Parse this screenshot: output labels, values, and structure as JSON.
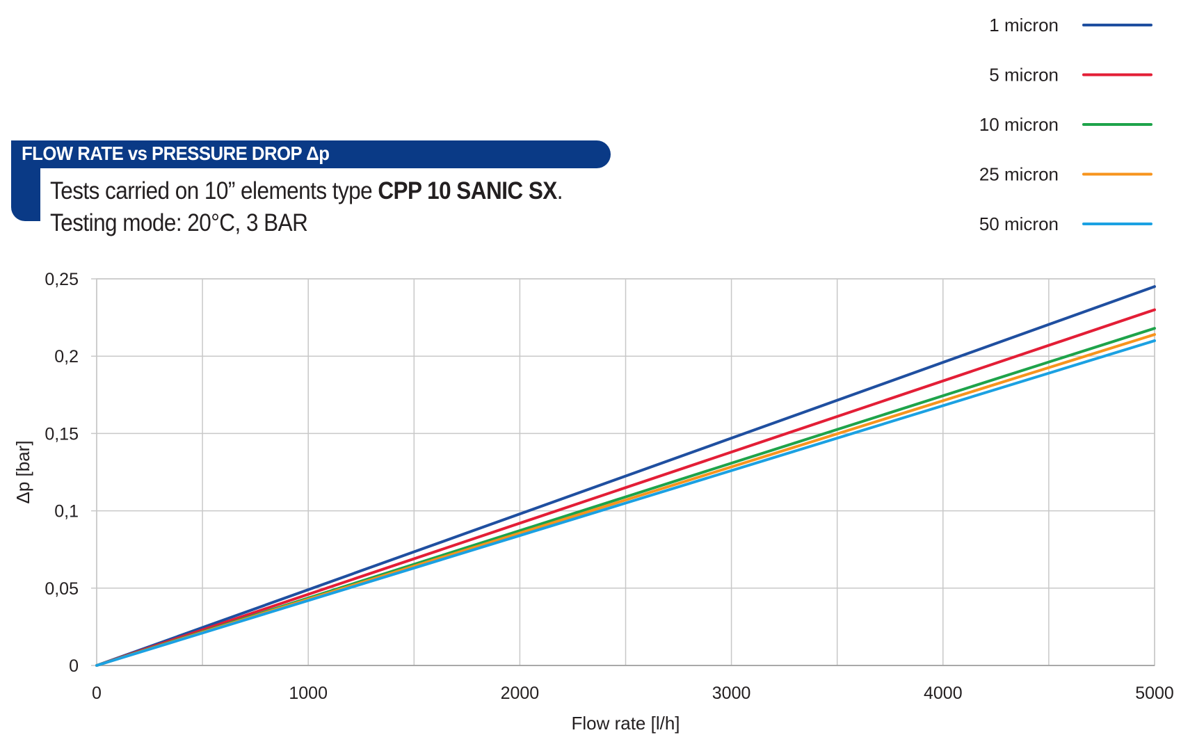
{
  "header": {
    "title": "FLOW RATE vs PRESSURE DROP Δp",
    "line1_prefix": "Tests carried on 10” elements type ",
    "line1_bold": "CPP 10 SANIC SX",
    "line1_suffix": ".",
    "line2": "Testing mode: 20°C, 3 BAR"
  },
  "colors": {
    "header_bg": "#0a3a86",
    "grid": "#c8c8c8"
  },
  "chart_data": {
    "type": "line",
    "title": "FLOW RATE vs PRESSURE DROP Δp",
    "xlabel": "Flow rate [l/h]",
    "ylabel": "Δp [bar]",
    "xlim": [
      0,
      5000
    ],
    "ylim": [
      0,
      0.25
    ],
    "grid": true,
    "legend_placement": "top-right",
    "x_ticks": [
      "0",
      "1000",
      "2000",
      "3000",
      "4000",
      "5000"
    ],
    "y_ticks": [
      "0",
      "0,05",
      "0,1",
      "0,15",
      "0,2",
      "0,25"
    ],
    "x_tick_values": [
      0,
      1000,
      2000,
      3000,
      4000,
      5000
    ],
    "y_tick_values": [
      0,
      0.05,
      0.1,
      0.15,
      0.2,
      0.25
    ],
    "x_minor_grid": [
      500,
      1500,
      2500,
      3500,
      4500
    ],
    "series": [
      {
        "name": "1 micron",
        "color": "#1f4fa0",
        "x": [
          0,
          5000
        ],
        "values": [
          0,
          0.245
        ]
      },
      {
        "name": "5 micron",
        "color": "#e31e36",
        "x": [
          0,
          5000
        ],
        "values": [
          0,
          0.23
        ]
      },
      {
        "name": "10 micron",
        "color": "#1ea34a",
        "x": [
          0,
          5000
        ],
        "values": [
          0,
          0.218
        ]
      },
      {
        "name": "25 micron",
        "color": "#f7941d",
        "x": [
          0,
          5000
        ],
        "values": [
          0,
          0.214
        ]
      },
      {
        "name": "50 micron",
        "color": "#1ba1e2",
        "x": [
          0,
          5000
        ],
        "values": [
          0,
          0.21
        ]
      }
    ]
  }
}
